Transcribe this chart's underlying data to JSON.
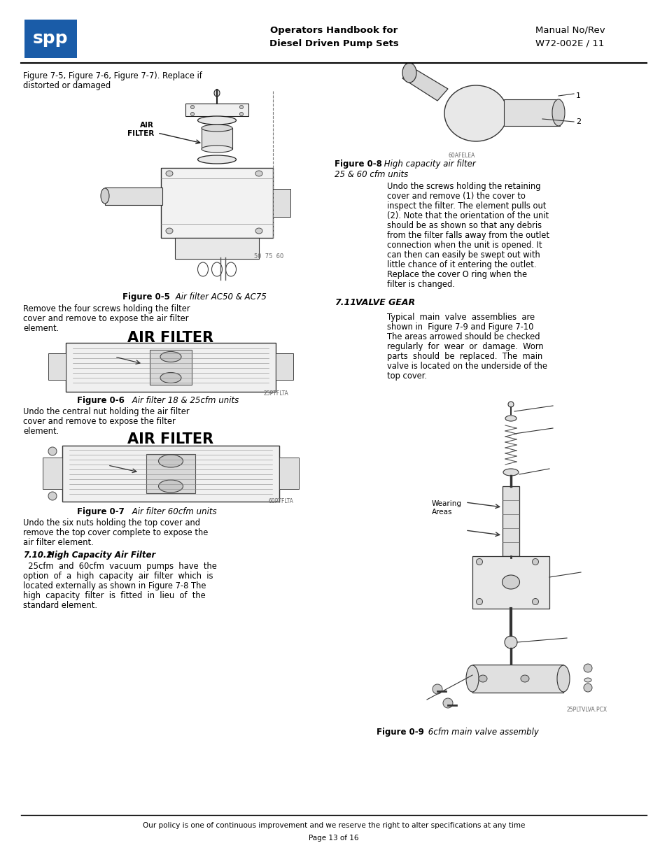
{
  "page_bg": "#ffffff",
  "logo_color": "#1a5ca8",
  "header_center_line1": "Operators Handbook for",
  "header_center_line2": "Diesel Driven Pump Sets",
  "header_right_line1": "Manual No/Rev",
  "header_right_line2": "W72-002E / 11",
  "footer_policy": "Our policy is one of continuous improvement and we reserve the right to alter specifications at any time",
  "footer_page": "Page 13 of 16",
  "intro_text": "Figure 7-5, Figure 7-6, Figure 7-7). Replace if\ndistorted or damaged",
  "text_after_fig5_l1": "Remove the four screws holding the filter",
  "text_after_fig5_l2": "cover and remove to expose the air filter",
  "text_after_fig5_l3": "element.",
  "air_filter_label_fig6": "AIR FILTER",
  "fig6_caption_bold": "Figure 0-6",
  "fig6_caption_italic": " Air filter 18 & 25cfm units",
  "text_after_fig6_l1": "Undo the central nut holding the air filter",
  "text_after_fig6_l2": "cover and remove to expose the filter",
  "text_after_fig6_l3": "element.",
  "air_filter_label_fig7": "AIR FILTER",
  "fig7_caption_bold": "Figure 0-7",
  "fig7_caption_italic": " Air filter 60cfm units",
  "text_after_fig7_l1": "Undo the six nuts holding the top cover and",
  "text_after_fig7_l2": "remove the top cover complete to expose the",
  "text_after_fig7_l3": "air filter element.",
  "section_710": "7.10.2",
  "section_710b": "High Capacity Air Filter",
  "text_710_l1": "  25cfm  and  60cfm  vacuum  pumps  have  the",
  "text_710_l2": "option  of  a  high  capacity  air  filter  which  is",
  "text_710_l3": "located externally as shown in Figure 7-8 The",
  "text_710_l4": "high  capacity  filter  is  fitted  in  lieu  of  the",
  "text_710_l5": "standard element.",
  "fig5_caption_bold": "Figure 0-5",
  "fig5_caption_italic": " Air filter AC50 & AC75",
  "fig8_caption_bold": "Figure 0-8",
  "fig8_caption_italic": " High capacity air filter",
  "fig8_caption_line2": "25 & 60 cfm units",
  "right_body_text": "        Undo the screws holding the retaining\n        cover and remove (1) the cover to\n        inspect the filter. The element pulls out\n        (2). Note that the orientation of the unit\n        should be as shown so that any debris\n        from the filter falls away from the outlet\n        connection when the unit is opened. It\n        can then can easily be swept out with\n        little chance of it entering the outlet.\n        Replace the cover O ring when the\n        filter is changed.",
  "section_711": "7.11",
  "section_711b": "VALVE GEAR",
  "right_711_text": "        Typical  main  valve  assemblies  are\n        shown in  Figure 7-9 and Figure 7-10\n        The areas arrowed should be checked\n        regularly  for  wear  or  damage.  Worn\n        parts  should  be  replaced.  The  main\n        valve is located on the underside of the\n        top cover.",
  "wearing_areas": "Wearing\nAreas",
  "fig9_caption_bold": "Figure 0-9",
  "fig9_caption_italic": " 6cfm main valve assembly",
  "label_60AFELEA": "60AFELEA",
  "label_25PTFLTA": "25PTFLTA",
  "label_60PTFLTA": "60PTFLTA",
  "label_25PLTVLVA": "25PLTVLVA.PCX",
  "label_50_75_60": "50  75  60"
}
